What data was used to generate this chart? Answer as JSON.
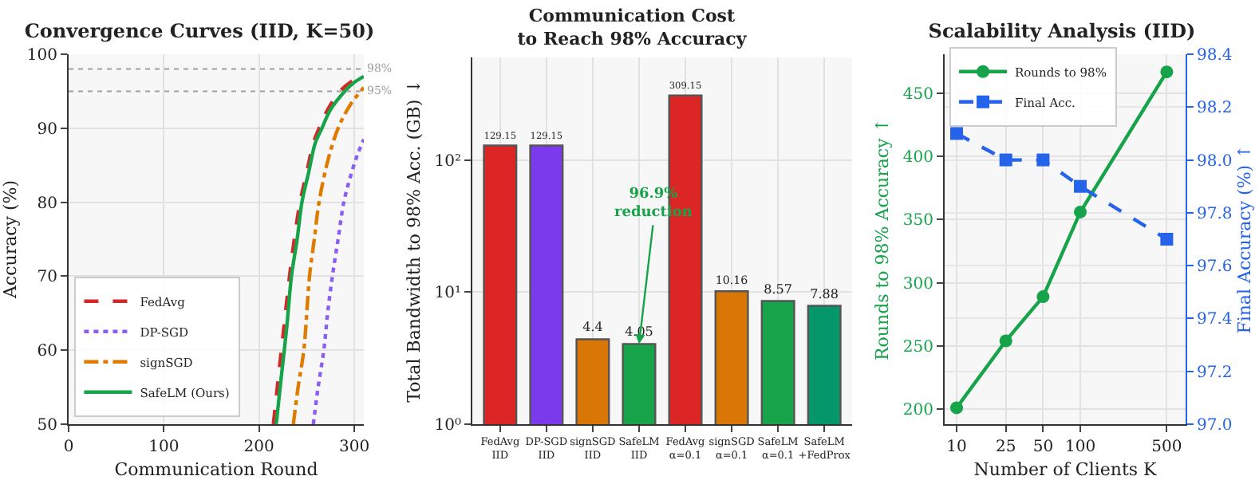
{
  "chart_data": [
    {
      "type": "line",
      "title": "Convergence Curves (IID, K=50)",
      "xlabel": "Communication Round",
      "ylabel": "Accuracy (%)",
      "xlim": [
        0,
        310
      ],
      "ylim": [
        50,
        100
      ],
      "xticks": [
        0,
        100,
        200,
        300
      ],
      "yticks": [
        50,
        60,
        70,
        80,
        90,
        100
      ],
      "grid": true,
      "legend": "bottom left",
      "marker": "none",
      "ref_lines": [
        {
          "axis": "y",
          "value": 98,
          "label": "98%",
          "color": "#9e9e9e",
          "line_style": "dotted"
        },
        {
          "axis": "y",
          "value": 95,
          "label": "95%",
          "color": "#9e9e9e",
          "line_style": "dotted"
        }
      ],
      "series": [
        {
          "name": "FedAvg",
          "color": "#d62728",
          "line_style": "dashed",
          "x": [
            215,
            220,
            226,
            232,
            237,
            243,
            250,
            257,
            263,
            272,
            285,
            298,
            310
          ],
          "values": [
            50,
            56,
            63,
            70,
            75,
            80,
            84,
            88,
            90,
            92.5,
            95,
            96.4,
            97.2
          ]
        },
        {
          "name": "DP-SGD",
          "color": "#8b5cf6",
          "line_style": "dotted",
          "x": [
            257,
            262,
            268,
            272,
            277,
            283,
            289,
            296,
            303,
            310
          ],
          "values": [
            50,
            55,
            60,
            65,
            70,
            75,
            80,
            83.5,
            86.3,
            88.5
          ]
        },
        {
          "name": "signSGD",
          "color": "#e07b00",
          "line_style": "dashdot",
          "x": [
            236,
            241,
            247,
            253,
            258,
            263,
            272,
            283,
            296,
            310
          ],
          "values": [
            50,
            55,
            60,
            70,
            75,
            80,
            85.5,
            90,
            93.2,
            95.5
          ]
        },
        {
          "name": "SafeLM (Ours)",
          "color": "#16a34a",
          "line_style": "solid",
          "x": [
            218,
            223,
            229,
            234,
            240,
            245,
            252,
            259,
            266,
            275,
            290,
            300,
            310
          ],
          "values": [
            50,
            56,
            63,
            70,
            75,
            80,
            84,
            88,
            90,
            92.5,
            95,
            96.2,
            97
          ]
        }
      ]
    },
    {
      "type": "bar",
      "title": "Communication Cost\nto Reach 98% Accuracy",
      "ylabel": "Total Bandwidth to 98% Acc. (GB) ↓",
      "log": "y",
      "ylim": [
        1,
        600
      ],
      "yticks": [
        {
          "value": 1,
          "label": "10⁰"
        },
        {
          "value": 10,
          "label": "10¹"
        },
        {
          "value": 100,
          "label": "10²"
        }
      ],
      "grid": true,
      "data_labels": true,
      "categories": [
        "FedAvg\nIID",
        "DP-SGD\nIID",
        "signSGD\nIID",
        "SafeLM\nIID",
        "FedAvg\nα=0.1",
        "signSGD\nα=0.1",
        "SafeLM\nα=0.1",
        "SafeLM\n+FedProx"
      ],
      "values": [
        129.15,
        129.15,
        4.4,
        4.05,
        309.15,
        10.16,
        8.57,
        7.88
      ],
      "colors": [
        "#dc2626",
        "#7c3aed",
        "#d97706",
        "#16a34a",
        "#dc2626",
        "#d97706",
        "#16a34a",
        "#059669"
      ],
      "annotations": [
        {
          "text": "96.9%\nreduction",
          "x": "SafeLM\nIID",
          "y": 4.05
        }
      ]
    },
    {
      "type": "line",
      "title": "Scalability Analysis (IID)",
      "xlabel": "Number of Clients K",
      "ylabel": "Rounds to 98% Accuracy ↑",
      "y2label": "Final Accuracy (%) ↑",
      "log": "x",
      "xlim": [
        8,
        710
      ],
      "xticks": [
        10,
        25,
        50,
        100,
        500
      ],
      "ylim": [
        188,
        481
      ],
      "yticks": [
        200,
        250,
        300,
        350,
        400,
        450
      ],
      "y2lim": [
        97.0,
        98.4
      ],
      "y2ticks": [
        {
          "value": 97.0,
          "label": "97.0"
        },
        97.2,
        97.4,
        97.6,
        97.8,
        {
          "value": 98.0,
          "label": "98.0"
        },
        98.2,
        98.4
      ],
      "grid": true,
      "legend": "top left",
      "x": [
        10,
        25,
        50,
        100,
        500
      ],
      "series": [
        {
          "name": "Rounds to 98%",
          "color": "#16a34a",
          "marker": "circle",
          "line_style": "solid",
          "values": [
            201,
            254,
            289,
            356,
            467
          ]
        },
        {
          "name": "Final Acc.",
          "color": "#2563eb",
          "marker": "square",
          "line_style": "dashed",
          "axis": "y2",
          "values": [
            98.1,
            98.0,
            98.0,
            97.9,
            97.7
          ]
        }
      ]
    }
  ]
}
